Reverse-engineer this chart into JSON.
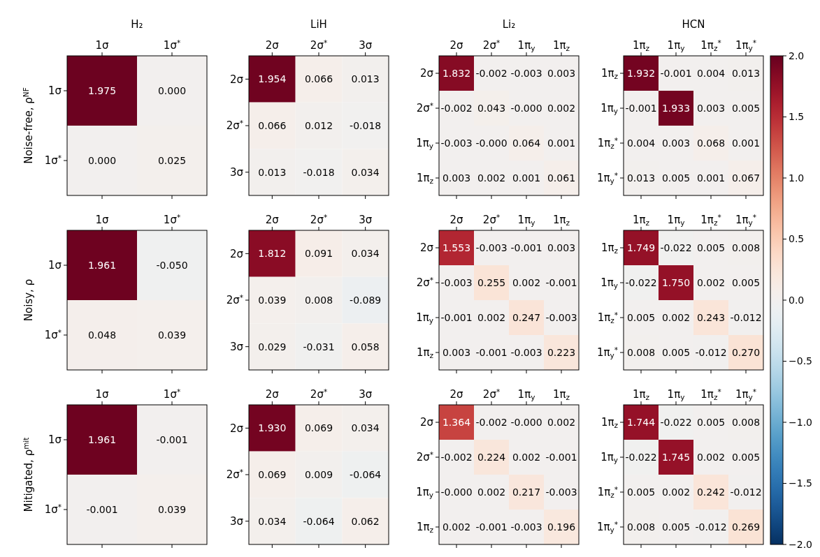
{
  "chart_data": [
    {
      "type": "heatmap",
      "title": "H₂",
      "ylabel": "Noise-free, ρ$^{NF}$",
      "categories": [
        "1σ",
        "1σ$^{*}$"
      ],
      "y_categories": [
        "1σ",
        "1σ$^{*}$"
      ],
      "cells": [
        [
          1.975,
          0.0
        ],
        [
          0.0,
          0.025
        ]
      ],
      "cell_labels": [
        [
          "1.975",
          "0.000"
        ],
        [
          "0.000",
          "0.025"
        ]
      ]
    },
    {
      "type": "heatmap",
      "title": "LiH",
      "categories": [
        "2σ",
        "2σ$^{*}$",
        "3σ"
      ],
      "y_categories": [
        "2σ",
        "2σ$^{*}$",
        "3σ"
      ],
      "cells": [
        [
          1.954,
          0.066,
          0.013
        ],
        [
          0.066,
          0.012,
          -0.018
        ],
        [
          0.013,
          -0.018,
          0.034
        ]
      ],
      "cell_labels": [
        [
          "1.954",
          "0.066",
          "0.013"
        ],
        [
          "0.066",
          "0.012",
          "-0.018"
        ],
        [
          "0.013",
          "-0.018",
          "0.034"
        ]
      ]
    },
    {
      "type": "heatmap",
      "title": "Li₂",
      "categories": [
        "2σ",
        "2σ$^{*}$",
        "1π$_{y}$",
        "1π$_{z}$"
      ],
      "y_categories": [
        "2σ",
        "2σ$^{*}$",
        "1π$_{y}$",
        "1π$_{z}$"
      ],
      "cells": [
        [
          1.832,
          -0.002,
          -0.003,
          0.003
        ],
        [
          -0.002,
          0.043,
          0.0,
          0.002
        ],
        [
          -0.003,
          0.0,
          0.064,
          0.001
        ],
        [
          0.003,
          0.002,
          0.001,
          0.061
        ]
      ],
      "cell_labels": [
        [
          "1.832",
          "-0.002",
          "-0.003",
          "0.003"
        ],
        [
          "-0.002",
          "0.043",
          "-0.000",
          "0.002"
        ],
        [
          "-0.003",
          "-0.000",
          "0.064",
          "0.001"
        ],
        [
          "0.003",
          "0.002",
          "0.001",
          "0.061"
        ]
      ]
    },
    {
      "type": "heatmap",
      "title": "HCN",
      "categories": [
        "1π$_{z}$",
        "1π$_{y}$",
        "1π$_{z}$$^{*}$",
        "1π$_{y}$$^{*}$"
      ],
      "y_categories": [
        "1π$_{z}$",
        "1π$_{y}$",
        "1π$_{z}$$^{*}$",
        "1π$_{y}$$^{*}$"
      ],
      "cells": [
        [
          1.932,
          -0.001,
          0.004,
          0.013
        ],
        [
          -0.001,
          1.933,
          0.003,
          0.005
        ],
        [
          0.004,
          0.003,
          0.068,
          0.001
        ],
        [
          0.013,
          0.005,
          0.001,
          0.067
        ]
      ],
      "cell_labels": [
        [
          "1.932",
          "-0.001",
          "0.004",
          "0.013"
        ],
        [
          "-0.001",
          "1.933",
          "0.003",
          "0.005"
        ],
        [
          "0.004",
          "0.003",
          "0.068",
          "0.001"
        ],
        [
          "0.013",
          "0.005",
          "0.001",
          "0.067"
        ]
      ],
      "clim": [
        -2,
        2
      ],
      "cticks": [
        {
          "value": -2,
          "label": "−2.0"
        },
        {
          "value": -1.5,
          "label": "−1.5"
        },
        {
          "value": -1,
          "label": "−1.0"
        },
        {
          "value": -0.5,
          "label": "−0.5"
        },
        {
          "value": 0,
          "label": "0.0"
        },
        {
          "value": 0.5,
          "label": "0.5"
        },
        {
          "value": 1,
          "label": "1.0"
        },
        {
          "value": 1.5,
          "label": "1.5"
        },
        {
          "value": 2,
          "label": "2.0"
        }
      ]
    },
    {
      "type": "heatmap",
      "ylabel": "Noisy, ρ",
      "categories": [
        "1σ",
        "1σ$^{*}$"
      ],
      "y_categories": [
        "1σ",
        "1σ$^{*}$"
      ],
      "cells": [
        [
          1.961,
          -0.05
        ],
        [
          0.048,
          0.039
        ]
      ],
      "cell_labels": [
        [
          "1.961",
          "-0.050"
        ],
        [
          "0.048",
          "0.039"
        ]
      ]
    },
    {
      "type": "heatmap",
      "categories": [
        "2σ",
        "2σ$^{*}$",
        "3σ"
      ],
      "y_categories": [
        "2σ",
        "2σ$^{*}$",
        "3σ"
      ],
      "cells": [
        [
          1.812,
          0.091,
          0.034
        ],
        [
          0.039,
          0.008,
          -0.089
        ],
        [
          0.029,
          -0.031,
          0.058
        ]
      ],
      "cell_labels": [
        [
          "1.812",
          "0.091",
          "0.034"
        ],
        [
          "0.039",
          "0.008",
          "-0.089"
        ],
        [
          "0.029",
          "-0.031",
          "0.058"
        ]
      ]
    },
    {
      "type": "heatmap",
      "categories": [
        "2σ",
        "2σ$^{*}$",
        "1π$_{y}$",
        "1π$_{z}$"
      ],
      "y_categories": [
        "2σ",
        "2σ$^{*}$",
        "1π$_{y}$",
        "1π$_{z}$"
      ],
      "cells": [
        [
          1.553,
          -0.003,
          -0.001,
          0.003
        ],
        [
          -0.003,
          0.255,
          0.002,
          -0.001
        ],
        [
          -0.001,
          0.002,
          0.247,
          -0.003
        ],
        [
          0.003,
          -0.001,
          -0.003,
          0.223
        ]
      ],
      "cell_labels": [
        [
          "1.553",
          "-0.003",
          "-0.001",
          "0.003"
        ],
        [
          "-0.003",
          "0.255",
          "0.002",
          "-0.001"
        ],
        [
          "-0.001",
          "0.002",
          "0.247",
          "-0.003"
        ],
        [
          "0.003",
          "-0.001",
          "-0.003",
          "0.223"
        ]
      ]
    },
    {
      "type": "heatmap",
      "categories": [
        "1π$_{z}$",
        "1π$_{y}$",
        "1π$_{z}$$^{*}$",
        "1π$_{y}$$^{*}$"
      ],
      "y_categories": [
        "1π$_{z}$",
        "1π$_{y}$",
        "1π$_{z}$$^{*}$",
        "1π$_{y}$$^{*}$"
      ],
      "cells": [
        [
          1.749,
          -0.022,
          0.005,
          0.008
        ],
        [
          -0.022,
          1.75,
          0.002,
          0.005
        ],
        [
          0.005,
          0.002,
          0.243,
          -0.012
        ],
        [
          0.008,
          0.005,
          -0.012,
          0.27
        ]
      ],
      "cell_labels": [
        [
          "1.749",
          "-0.022",
          "0.005",
          "0.008"
        ],
        [
          "-0.022",
          "1.750",
          "0.002",
          "0.005"
        ],
        [
          "0.005",
          "0.002",
          "0.243",
          "-0.012"
        ],
        [
          "0.008",
          "0.005",
          "-0.012",
          "0.270"
        ]
      ]
    },
    {
      "type": "heatmap",
      "ylabel": "Mitigated, ρ$^{mit}$",
      "categories": [
        "1σ",
        "1σ$^{*}$"
      ],
      "y_categories": [
        "1σ",
        "1σ$^{*}$"
      ],
      "cells": [
        [
          1.961,
          -0.001
        ],
        [
          -0.001,
          0.039
        ]
      ],
      "cell_labels": [
        [
          "1.961",
          "-0.001"
        ],
        [
          "-0.001",
          "0.039"
        ]
      ]
    },
    {
      "type": "heatmap",
      "categories": [
        "2σ",
        "2σ$^{*}$",
        "3σ"
      ],
      "y_categories": [
        "2σ",
        "2σ$^{*}$",
        "3σ"
      ],
      "cells": [
        [
          1.93,
          0.069,
          0.034
        ],
        [
          0.069,
          0.009,
          -0.064
        ],
        [
          0.034,
          -0.064,
          0.062
        ]
      ],
      "cell_labels": [
        [
          "1.930",
          "0.069",
          "0.034"
        ],
        [
          "0.069",
          "0.009",
          "-0.064"
        ],
        [
          "0.034",
          "-0.064",
          "0.062"
        ]
      ]
    },
    {
      "type": "heatmap",
      "categories": [
        "2σ",
        "2σ$^{*}$",
        "1π$_{y}$",
        "1π$_{z}$"
      ],
      "y_categories": [
        "2σ",
        "2σ$^{*}$",
        "1π$_{y}$",
        "1π$_{z}$"
      ],
      "cells": [
        [
          1.364,
          -0.002,
          0.0,
          0.002
        ],
        [
          -0.002,
          0.224,
          0.002,
          -0.001
        ],
        [
          0.0,
          0.002,
          0.217,
          -0.003
        ],
        [
          0.002,
          -0.001,
          -0.003,
          0.196
        ]
      ],
      "cell_labels": [
        [
          "1.364",
          "-0.002",
          "-0.000",
          "0.002"
        ],
        [
          "-0.002",
          "0.224",
          "0.002",
          "-0.001"
        ],
        [
          "-0.000",
          "0.002",
          "0.217",
          "-0.003"
        ],
        [
          "0.002",
          "-0.001",
          "-0.003",
          "0.196"
        ]
      ]
    },
    {
      "type": "heatmap",
      "categories": [
        "1π$_{z}$",
        "1π$_{y}$",
        "1π$_{z}$$^{*}$",
        "1π$_{y}$$^{*}$"
      ],
      "y_categories": [
        "1π$_{z}$",
        "1π$_{y}$",
        "1π$_{z}$$^{*}$",
        "1π$_{y}$$^{*}$"
      ],
      "cells": [
        [
          1.744,
          -0.022,
          0.005,
          0.008
        ],
        [
          -0.022,
          1.745,
          0.002,
          0.005
        ],
        [
          0.005,
          0.002,
          0.242,
          -0.012
        ],
        [
          0.008,
          0.005,
          -0.012,
          0.269
        ]
      ],
      "cell_labels": [
        [
          "1.744",
          "-0.022",
          "0.005",
          "0.008"
        ],
        [
          "-0.022",
          "1.745",
          "0.002",
          "0.005"
        ],
        [
          "0.005",
          "0.002",
          "0.242",
          "-0.012"
        ],
        [
          "0.008",
          "0.005",
          "-0.012",
          "0.269"
        ]
      ]
    }
  ]
}
